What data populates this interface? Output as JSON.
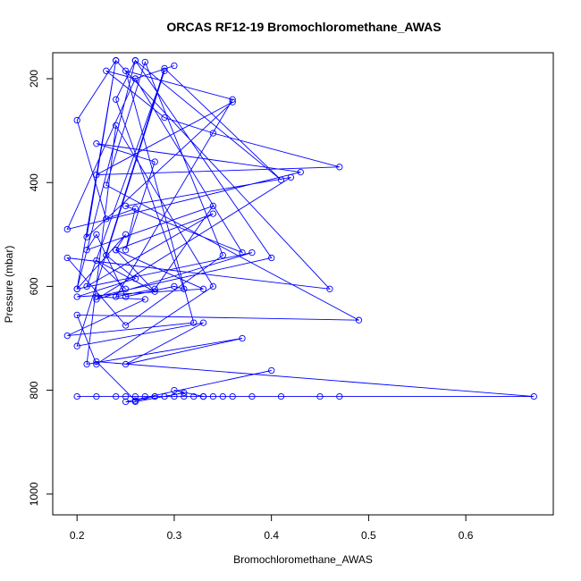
{
  "chart_data": {
    "type": "line",
    "title": "ORCAS RF12-19 Bromochloromethane_AWAS",
    "xlabel": "Bromochloromethane_AWAS",
    "ylabel": "Pressure (mbar)",
    "xlim": [
      0.175,
      0.69
    ],
    "ylim": [
      1040,
      150
    ],
    "y_reversed": true,
    "x_ticks": [
      0.2,
      0.3,
      0.4,
      0.5,
      0.6
    ],
    "y_ticks": [
      200,
      400,
      600,
      800,
      1000
    ],
    "x_tick_labels": [
      "0.2",
      "0.3",
      "0.4",
      "0.5",
      "0.6"
    ],
    "y_tick_labels": [
      "200",
      "400",
      "600",
      "800",
      "1000"
    ],
    "series_color": "#0000ff",
    "grid": false,
    "series": [
      {
        "x": [
          0.3,
          0.26,
          0.23,
          0.29,
          0.34,
          0.47,
          0.22,
          0.36,
          0.21,
          0.24,
          0.2,
          0.23,
          0.26,
          0.25,
          0.28,
          0.22,
          0.43,
          0.19,
          0.26,
          0.37,
          0.25,
          0.42,
          0.22,
          0.38,
          0.2,
          0.24,
          0.46,
          0.19,
          0.25,
          0.35,
          0.27,
          0.23,
          0.49,
          0.2,
          0.22,
          0.34,
          0.24,
          0.21,
          0.37,
          0.25,
          0.33,
          0.2,
          0.29,
          0.41,
          0.26,
          0.24,
          0.31,
          0.3,
          0.25,
          0.22,
          0.21,
          0.34,
          0.28,
          0.24,
          0.36,
          0.25,
          0.32,
          0.19,
          0.27,
          0.22,
          0.4,
          0.26,
          0.2,
          0.25,
          0.24,
          0.34,
          0.21,
          0.29,
          0.23,
          0.26,
          0.2,
          0.33,
          0.24,
          0.28,
          0.22,
          0.25
        ],
        "y": [
          175,
          200,
          185,
          275,
          305,
          370,
          385,
          245,
          505,
          165,
          280,
          470,
          450,
          530,
          360,
          325,
          380,
          490,
          200,
          535,
          445,
          390,
          625,
          535,
          605,
          165,
          605,
          545,
          675,
          540,
          168,
          405,
          665,
          655,
          750,
          600,
          290,
          750,
          700,
          750,
          670,
          715,
          180,
          395,
          165,
          240,
          605,
          600,
          620,
          500,
          530,
          445,
          605,
          620,
          240,
          185,
          670,
          695,
          625,
          620,
          545,
          165,
          605,
          500,
          530,
          460,
          600,
          185,
          540,
          585,
          620,
          605,
          530,
          610,
          550,
          605
        ]
      },
      {
        "x": [
          0.2,
          0.22,
          0.24,
          0.25,
          0.26,
          0.27,
          0.28,
          0.29,
          0.3,
          0.31,
          0.32,
          0.33,
          0.34,
          0.35,
          0.36,
          0.38,
          0.41,
          0.45,
          0.47,
          0.67,
          0.22,
          0.26,
          0.28,
          0.33,
          0.3,
          0.31,
          0.26,
          0.25,
          0.4
        ],
        "y": [
          812,
          812,
          812,
          812,
          812,
          812,
          812,
          812,
          812,
          812,
          812,
          812,
          812,
          812,
          812,
          812,
          812,
          812,
          812,
          812,
          745,
          820,
          812,
          812,
          800,
          805,
          822,
          822,
          762
        ]
      }
    ]
  }
}
